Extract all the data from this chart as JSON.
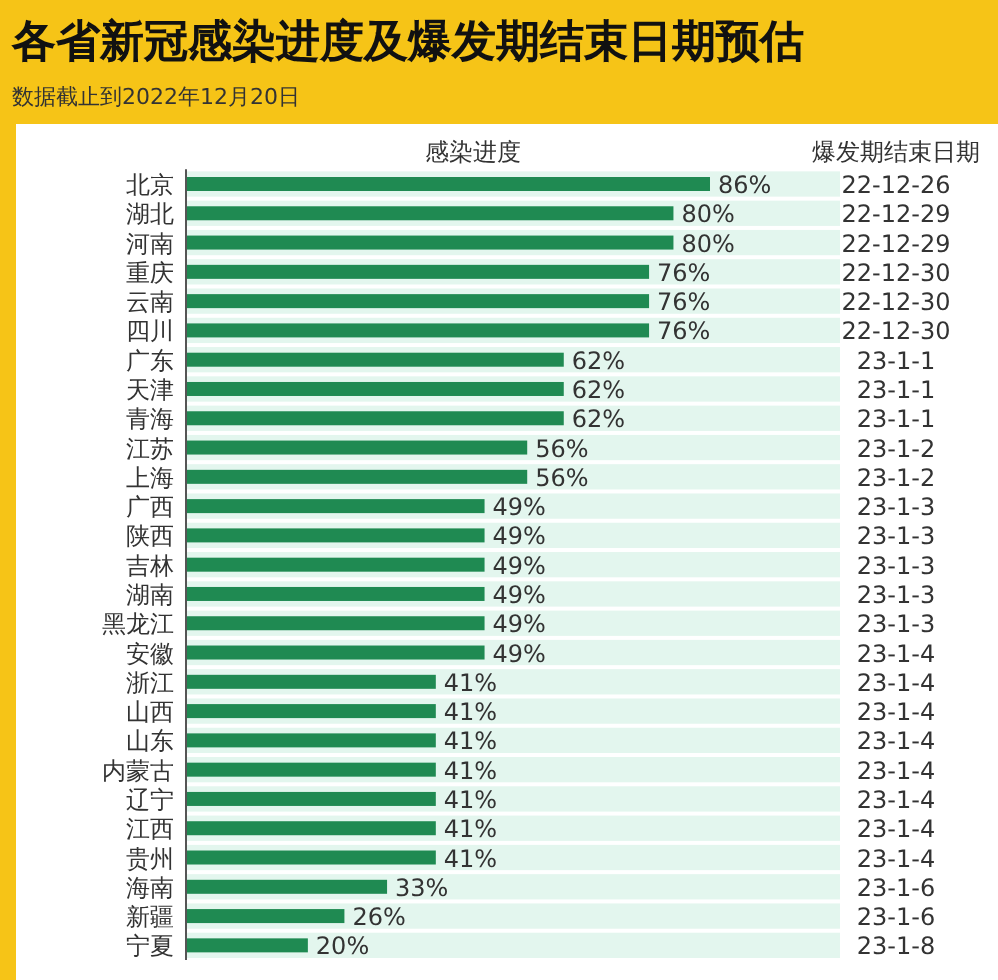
{
  "chart_data": {
    "type": "bar",
    "orientation": "horizontal",
    "title": "各省新冠感染进度及爆发期结束日期预估",
    "subtitle": "数据截止到2022年12月20日",
    "xlabel": "感染进度",
    "y2label": "爆发期结束日期",
    "categories": [
      "北京",
      "湖北",
      "河南",
      "重庆",
      "云南",
      "四川",
      "广东",
      "天津",
      "青海",
      "江苏",
      "上海",
      "广西",
      "陕西",
      "吉林",
      "湖南",
      "黑龙江",
      "安徽",
      "浙江",
      "山西",
      "山东",
      "内蒙古",
      "辽宁",
      "江西",
      "贵州",
      "海南",
      "新疆",
      "宁夏"
    ],
    "values": [
      86,
      80,
      80,
      76,
      76,
      76,
      62,
      62,
      62,
      56,
      56,
      49,
      49,
      49,
      49,
      49,
      49,
      41,
      41,
      41,
      41,
      41,
      41,
      41,
      33,
      26,
      20
    ],
    "value_labels": [
      "86%",
      "80%",
      "80%",
      "76%",
      "76%",
      "76%",
      "62%",
      "62%",
      "62%",
      "56%",
      "56%",
      "49%",
      "49%",
      "49%",
      "49%",
      "49%",
      "49%",
      "41%",
      "41%",
      "41%",
      "41%",
      "41%",
      "41%",
      "41%",
      "33%",
      "26%",
      "20%"
    ],
    "y2_categories": [
      "22-12-26",
      "22-12-29",
      "22-12-29",
      "22-12-30",
      "22-12-30",
      "22-12-30",
      "23-1-1",
      "23-1-1",
      "23-1-1",
      "23-1-2",
      "23-1-2",
      "23-1-3",
      "23-1-3",
      "23-1-3",
      "23-1-3",
      "23-1-3",
      "23-1-4",
      "23-1-4",
      "23-1-4",
      "23-1-4",
      "23-1-4",
      "23-1-4",
      "23-1-4",
      "23-1-4",
      "23-1-6",
      "23-1-6",
      "23-1-8"
    ],
    "color": "#1f8a52"
  }
}
